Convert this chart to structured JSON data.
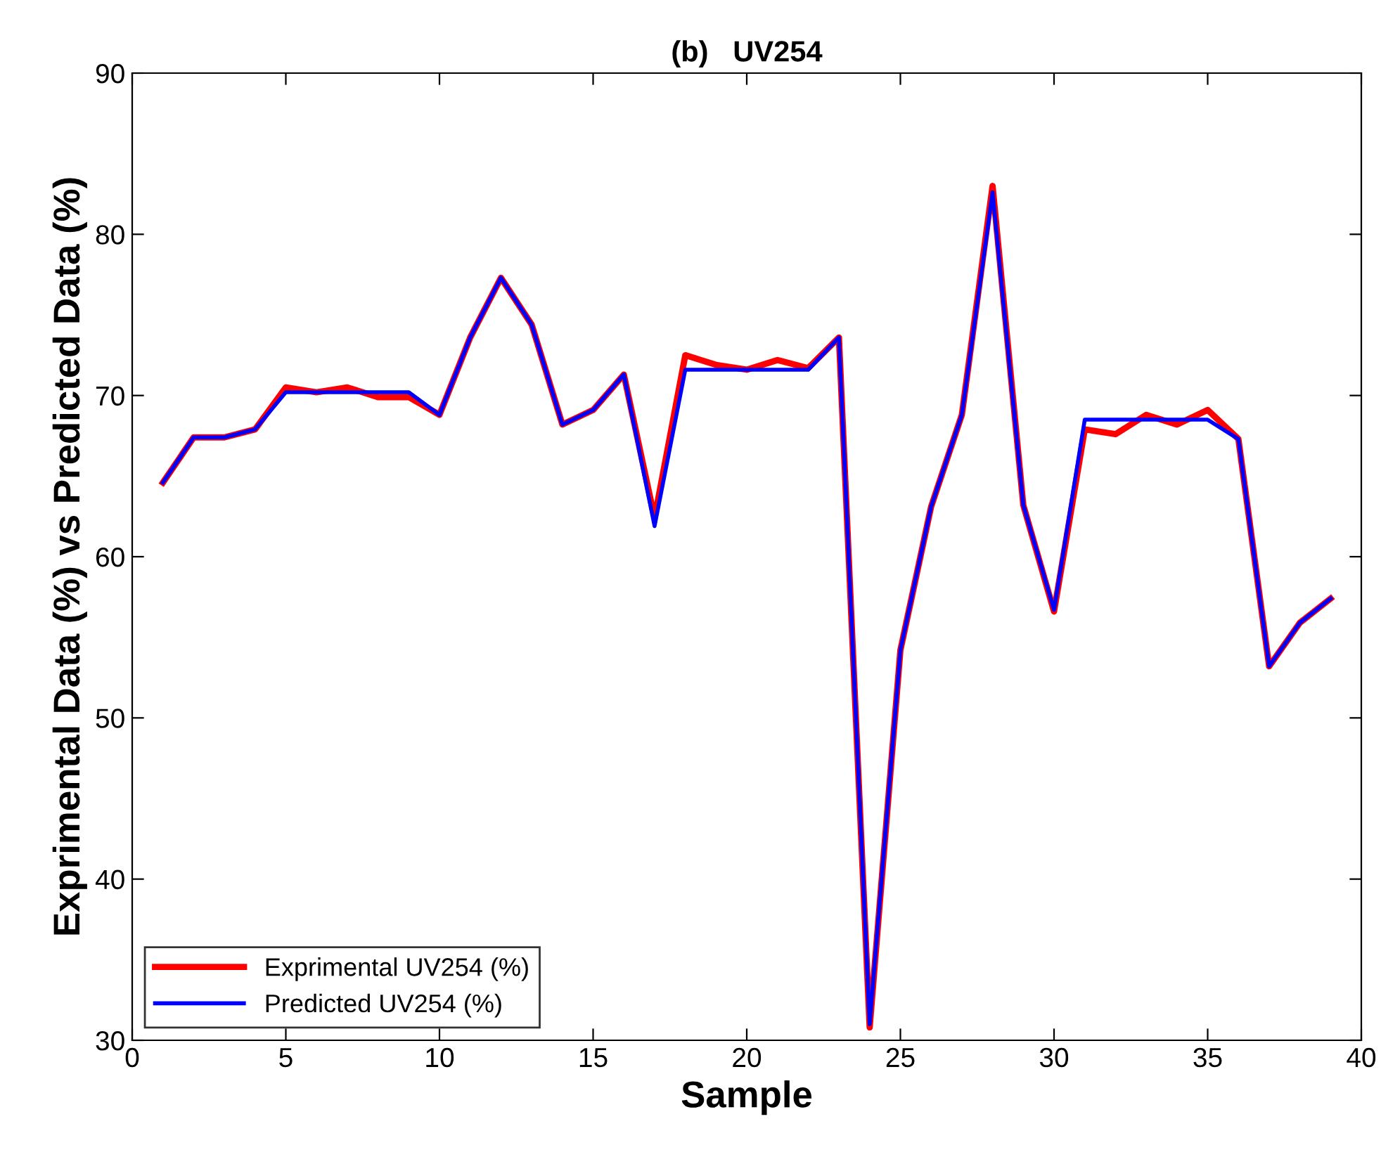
{
  "chart_data": {
    "type": "line",
    "title": "(b)   UV254",
    "xlabel": "Sample",
    "ylabel": "Exprimental Data (%) vs Predicted Data (%)",
    "x": [
      1,
      2,
      3,
      4,
      5,
      6,
      7,
      8,
      9,
      10,
      11,
      12,
      13,
      14,
      15,
      16,
      17,
      18,
      19,
      20,
      21,
      22,
      23,
      24,
      25,
      26,
      27,
      28,
      29,
      30,
      31,
      32,
      33,
      34,
      35,
      36,
      37,
      38,
      39
    ],
    "series": [
      {
        "name": "Exprimental UV254 (%)",
        "color": "#ff0000",
        "values": [
          64.6,
          67.4,
          67.4,
          67.9,
          70.5,
          70.2,
          70.5,
          69.9,
          69.9,
          68.8,
          73.6,
          77.3,
          74.4,
          68.2,
          69.1,
          71.3,
          62.4,
          72.5,
          71.9,
          71.6,
          72.2,
          71.7,
          73.6,
          30.8,
          54.2,
          63.1,
          68.8,
          83.0,
          63.2,
          56.6,
          67.9,
          67.6,
          68.8,
          68.2,
          69.1,
          67.3,
          53.2,
          55.9,
          57.4
        ]
      },
      {
        "name": "Predicted UV254 (%)",
        "color": "#0000ff",
        "values": [
          64.6,
          67.4,
          67.4,
          67.9,
          70.2,
          70.2,
          70.2,
          70.2,
          70.2,
          68.8,
          73.6,
          77.3,
          74.4,
          68.2,
          69.1,
          71.3,
          61.9,
          71.6,
          71.6,
          71.6,
          71.6,
          71.6,
          73.6,
          31.0,
          54.2,
          63.1,
          68.8,
          82.6,
          63.2,
          56.7,
          68.5,
          68.5,
          68.5,
          68.5,
          68.5,
          67.3,
          53.2,
          55.9,
          57.4
        ]
      }
    ],
    "xlim": [
      0,
      40
    ],
    "xticks": [
      0,
      5,
      10,
      15,
      20,
      25,
      30,
      35,
      40
    ],
    "ylim": [
      30,
      90
    ],
    "yticks": [
      30,
      40,
      50,
      60,
      70,
      80,
      90
    ],
    "grid": false,
    "legend": "bottom left",
    "marker": "none",
    "line_style": "solid"
  }
}
